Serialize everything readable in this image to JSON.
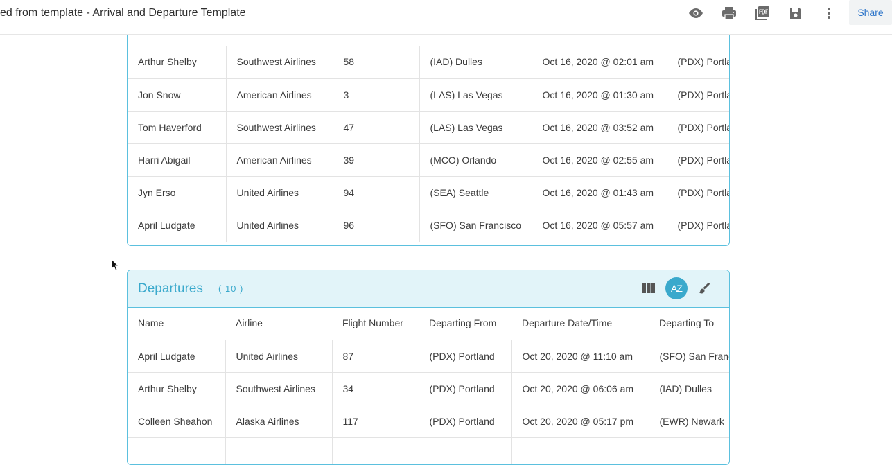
{
  "header": {
    "title": "tled from template - Arrival and Departure Template",
    "share_label": "Share",
    "icons": [
      "eye-icon",
      "print-icon",
      "pdf-icon",
      "save-icon",
      "more-vertical-icon"
    ]
  },
  "arrivals": {
    "rows": [
      [
        "Arthur Shelby",
        "Southwest Airlines",
        "58",
        "(IAD) Dulles",
        "Oct 16, 2020 @ 02:01 am",
        "(PDX) Portland"
      ],
      [
        "Jon Snow",
        "American Airlines",
        "3",
        "(LAS) Las Vegas",
        "Oct 16, 2020 @ 01:30 am",
        "(PDX) Portland"
      ],
      [
        "Tom Haverford",
        "Southwest Airlines",
        "47",
        "(LAS) Las Vegas",
        "Oct 16, 2020 @ 03:52 am",
        "(PDX) Portland"
      ],
      [
        "Harri Abigail",
        "American Airlines",
        "39",
        "(MCO) Orlando",
        "Oct 16, 2020 @ 02:55 am",
        "(PDX) Portland"
      ],
      [
        "Jyn Erso",
        "United Airlines",
        "94",
        "(SEA) Seattle",
        "Oct 16, 2020 @ 01:43 am",
        "(PDX) Portland"
      ],
      [
        "April Ludgate",
        "United Airlines",
        "96",
        "(SFO) San Francisco",
        "Oct 16, 2020 @ 05:57 am",
        "(PDX) Portland"
      ]
    ]
  },
  "departures": {
    "title": "Departures",
    "count": "( 10 )",
    "tools": [
      "columns-icon",
      "sort-az-icon",
      "brush-icon"
    ],
    "sort_label": "AZ",
    "columns": [
      "Name",
      "Airline",
      "Flight Number",
      "Departing From",
      "Departure Date/Time",
      "Departing To"
    ],
    "rows": [
      [
        "April Ludgate",
        "United Airlines",
        "87",
        "(PDX) Portland",
        "Oct 20, 2020 @ 11:10 am",
        "(SFO) San Francisco"
      ],
      [
        "Arthur Shelby",
        "Southwest Airlines",
        "34",
        "(PDX) Portland",
        "Oct 20, 2020 @ 06:06 am",
        "(IAD) Dulles"
      ],
      [
        "Colleen Sheahon",
        "Alaska Airlines",
        "117",
        "(PDX) Portland",
        "Oct 20, 2020 @ 05:17 pm",
        "(EWR) Newark"
      ],
      [
        "",
        "",
        "",
        "",
        "",
        ""
      ]
    ]
  },
  "colors": {
    "accent": "#3aa9cc",
    "border": "#5bc0de",
    "header_bg": "#e2f4f9",
    "share": "#2a73c9"
  }
}
